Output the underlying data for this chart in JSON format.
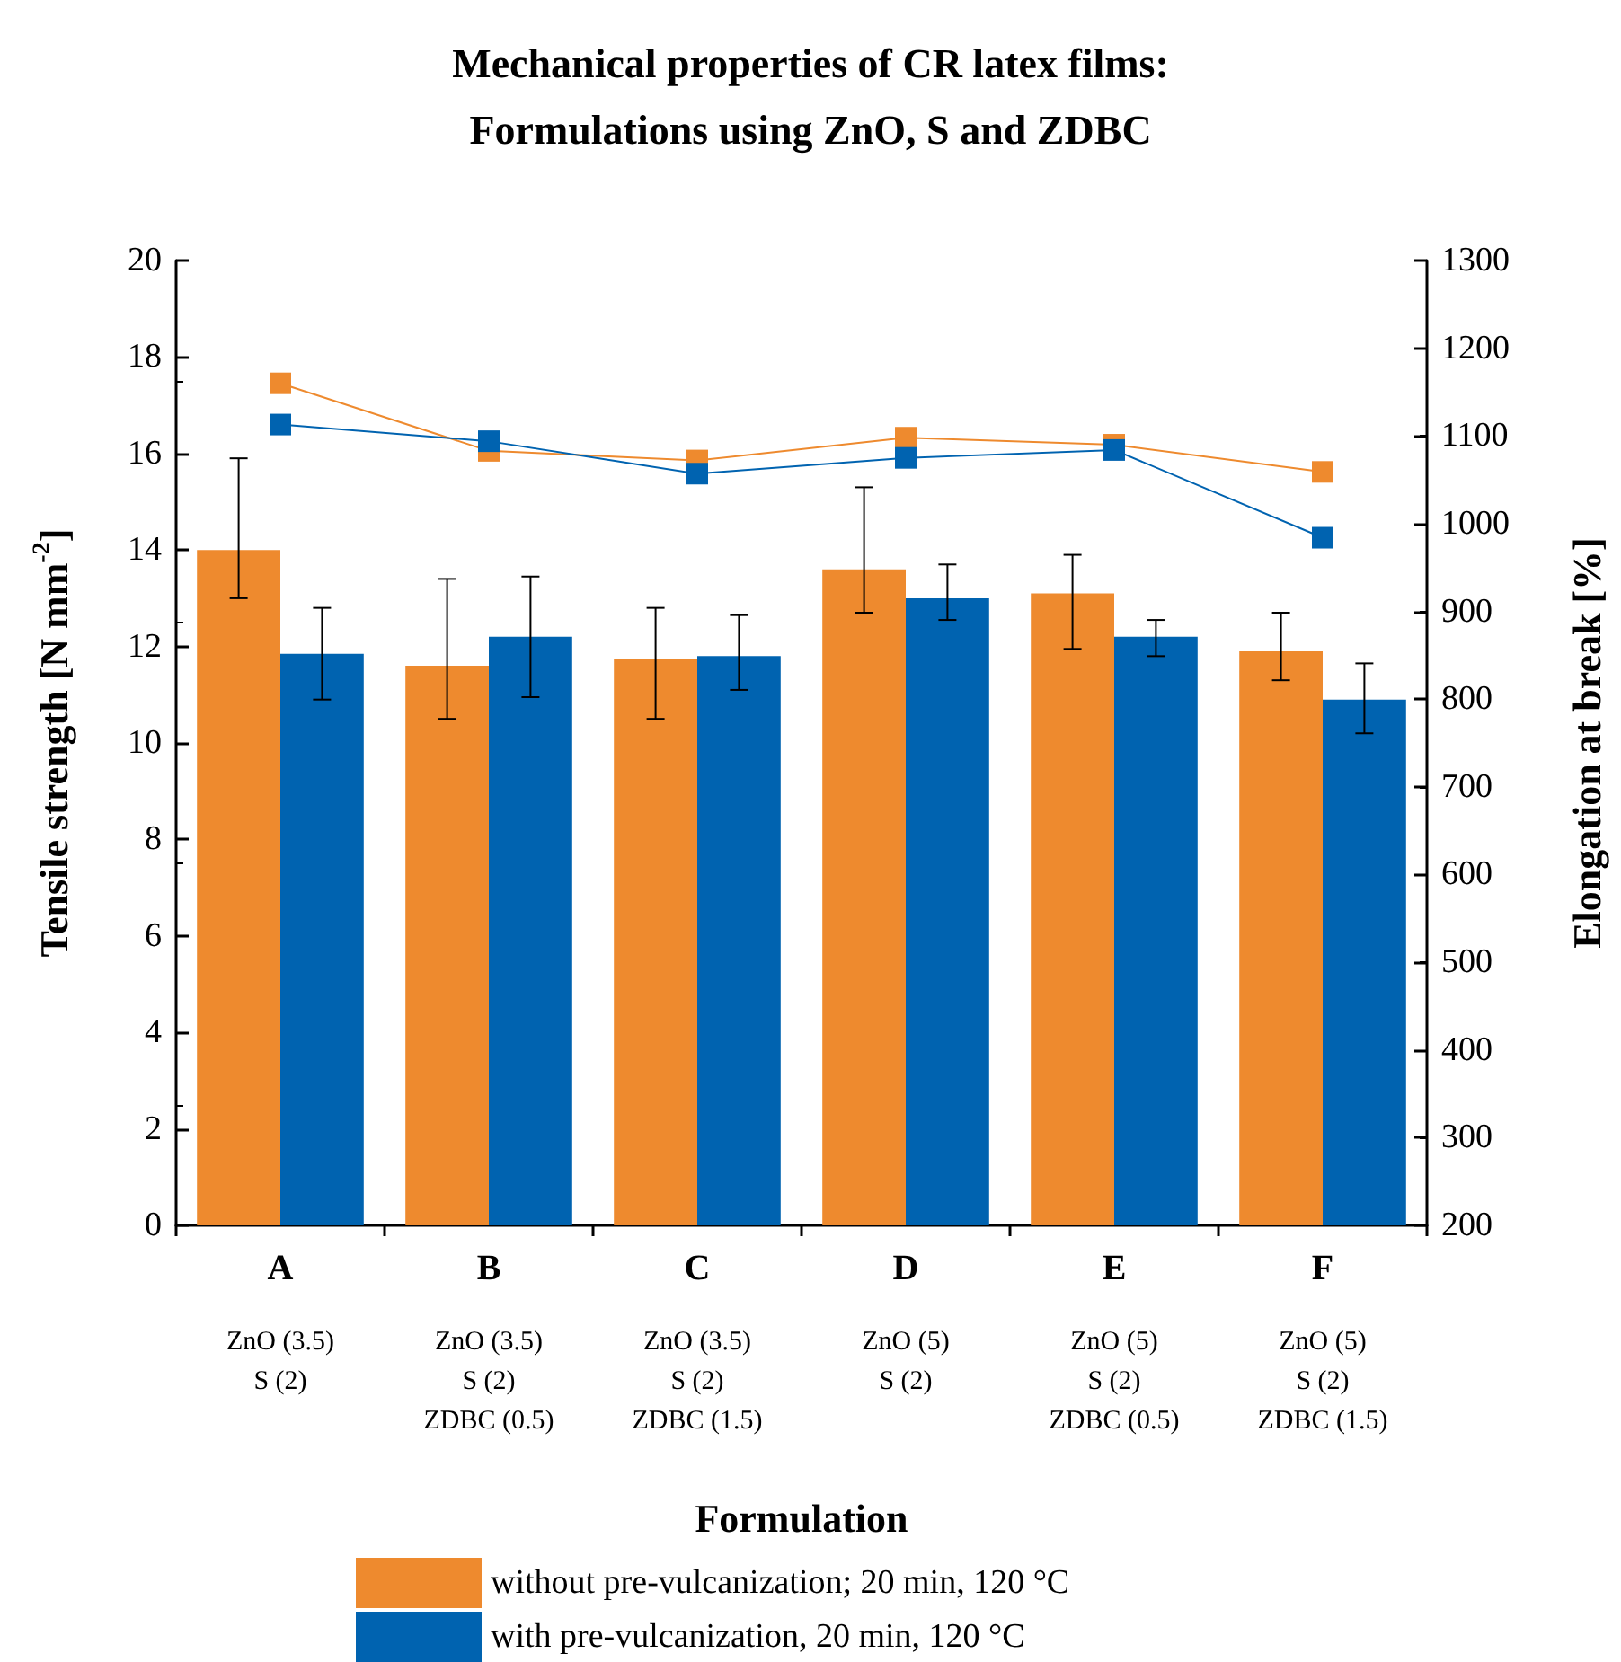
{
  "chart_data": {
    "type": "bar",
    "title": "Mechanical properties of CR latex films:\nFormulations using ZnO, S and ZDBC",
    "xlabel": "Formulation",
    "ylabel": "Tensile strength [N mm$^{-2}$]",
    "y2label": "Elongation at break [%]",
    "categories": [
      "A\nZnO (3.5)\nS (2)",
      "B\nZnO (3.5)\nS (2)\nZDBC (0.5)",
      "C\nZnO (3.5)\nS (2)\nZDBC (1.5)",
      "D\nZnO (5)\nS (2)",
      "E\nZnO (5)\nS (2)\nZDBC (0.5)",
      "F\nZnO (5)\nS (2)\nZDBC (1.5)"
    ],
    "series": [
      {
        "name": "without pre-vulcanization; 20 min, 120 °C",
        "color": "#ee8a2e",
        "values": [
          14.0,
          11.6,
          11.75,
          13.6,
          13.1,
          11.9
        ],
        "errors": [
          [
            13.0,
            15.9
          ],
          [
            10.5,
            13.4
          ],
          [
            10.5,
            12.8
          ],
          [
            12.7,
            15.3
          ],
          [
            11.95,
            13.9
          ],
          [
            11.3,
            12.7
          ]
        ]
      },
      {
        "name": "with pre-vulcanization, 20 min, 120 °C",
        "color": "#0063b0",
        "values": [
          11.85,
          12.2,
          11.8,
          13.0,
          12.2,
          10.9
        ],
        "errors": [
          [
            10.9,
            12.8
          ],
          [
            10.95,
            13.45
          ],
          [
            11.1,
            12.65
          ],
          [
            12.55,
            13.7
          ],
          [
            11.8,
            12.55
          ],
          [
            10.2,
            11.65
          ]
        ]
      },
      {
        "type": "line",
        "axis": "y2",
        "color": "#ee8a2e",
        "values": [
          1160,
          1083,
          1072,
          1098,
          1090,
          1059
        ]
      },
      {
        "type": "line",
        "axis": "y2",
        "color": "#0063b0",
        "values": [
          1113,
          1094,
          1057,
          1075,
          1084,
          984
        ]
      }
    ],
    "ylim": [
      0,
      20
    ],
    "yticks": [
      0,
      2,
      4,
      6,
      8,
      10,
      12,
      14,
      16,
      18,
      20
    ],
    "y2lim": [
      200,
      1300
    ],
    "y2ticks": [
      200,
      300,
      400,
      500,
      600,
      700,
      800,
      900,
      1000,
      1100,
      1200,
      1300
    ],
    "marker": "square",
    "legend": "bottom",
    "grid": false
  }
}
